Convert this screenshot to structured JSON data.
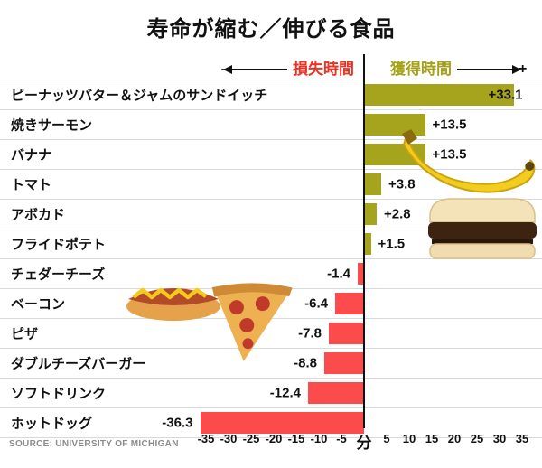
{
  "title": "寿命が縮む／伸びる食品",
  "legend": {
    "loss_prefix": "-",
    "loss_label": "損失時間",
    "gain_label": "獲得時間",
    "gain_suffix": "+"
  },
  "source": "SOURCE: UNIVERSITY OF MICHIGAN",
  "chart_data": {
    "type": "bar",
    "orientation": "horizontal",
    "title": "寿命が縮む／伸びる食品",
    "unit_label": "分",
    "categories": [
      "ピーナッツバター＆ジャムのサンドイッチ",
      "焼きサーモン",
      "バナナ",
      "トマト",
      "アボカド",
      "フライドポテト",
      "チェダーチーズ",
      "ベーコン",
      "ピザ",
      "ダブルチーズバーガー",
      "ソフトドリンク",
      "ホットドッグ"
    ],
    "values": [
      33.1,
      13.5,
      13.5,
      3.8,
      2.8,
      1.5,
      -1.4,
      -6.4,
      -7.8,
      -8.8,
      -12.4,
      -36.3
    ],
    "value_labels": [
      "+33.1",
      "+13.5",
      "+13.5",
      "+3.8",
      "+2.8",
      "+1.5",
      "-1.4",
      "-6.4",
      "-7.8",
      "-8.8",
      "-12.4",
      "-36.3"
    ],
    "xlim": [
      -35,
      35
    ],
    "axis_ticks": [
      "-35",
      "-30",
      "-25",
      "-20",
      "-15",
      "-10",
      "-5",
      "分",
      "5",
      "10",
      "15",
      "20",
      "25",
      "30",
      "35"
    ],
    "positive_color": "#a6a31c",
    "negative_color": "#fb4b4b",
    "grid": false,
    "legend_position": "top"
  },
  "food_images": [
    "banana",
    "peanut-butter-sandwich",
    "hot-dog",
    "pizza-slice"
  ]
}
